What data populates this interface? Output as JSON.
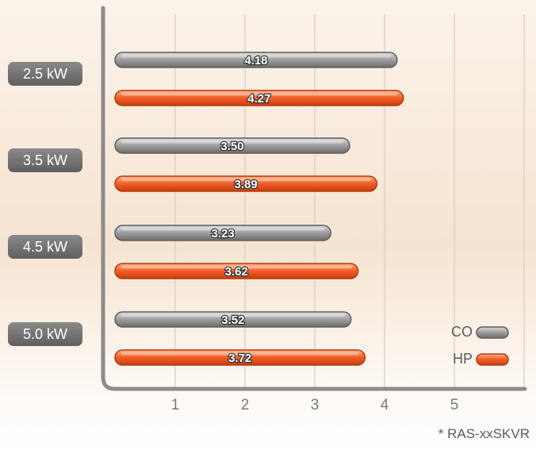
{
  "chart_data": {
    "type": "bar",
    "orientation": "horizontal",
    "categories": [
      "2.5 kW",
      "3.5 kW",
      "4.5 kW",
      "5.0 kW"
    ],
    "series": [
      {
        "name": "CO",
        "values": [
          4.18,
          3.5,
          3.23,
          3.52
        ],
        "color": "#8e8e8e"
      },
      {
        "name": "HP",
        "values": [
          4.27,
          3.89,
          3.62,
          3.72
        ],
        "color": "#f05a22"
      }
    ],
    "value_labels": {
      "CO": [
        "4.18",
        "3.50",
        "3.23",
        "3.52"
      ],
      "HP": [
        "4.27",
        "3.89",
        "3.62",
        "3.72"
      ]
    },
    "xticks": [
      "1",
      "2",
      "3",
      "4",
      "5"
    ],
    "xlim": [
      0,
      6
    ],
    "grid": true,
    "legend_position": "bottom-right"
  },
  "footnote": "* RAS-xxSKVR"
}
